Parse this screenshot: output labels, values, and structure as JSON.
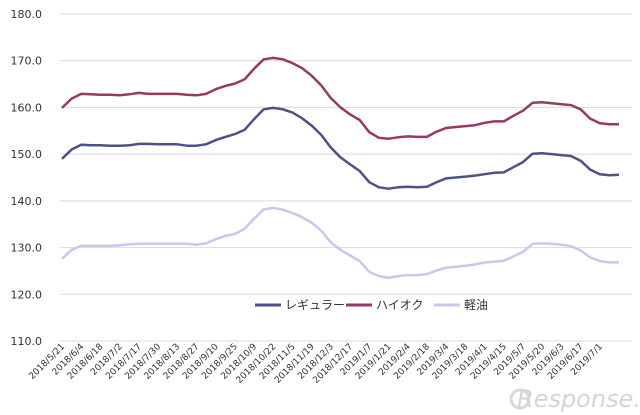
{
  "chart_data": {
    "type": "line",
    "title": "",
    "xlabel": "",
    "ylabel": "",
    "ylim": [
      110,
      180
    ],
    "ytick_step": 10,
    "y_tick_labels": [
      "110.0",
      "120.0",
      "130.0",
      "140.0",
      "150.0",
      "160.0",
      "170.0",
      "180.0"
    ],
    "grid": "horizontal",
    "legend_position": "bottom-center",
    "x_tick_labels": [
      "2018/5/21",
      "2018/6/4",
      "2018/6/18",
      "2018/7/2",
      "2018/7/17",
      "2018/7/30",
      "2018/8/13",
      "2018/8/27",
      "2018/9/10",
      "2018/9/25",
      "2018/10/9",
      "2018/10/22",
      "2018/11/5",
      "2018/11/19",
      "2018/12/3",
      "2018/12/17",
      "2019/1/7",
      "2019/1/21",
      "2019/2/4",
      "2019/2/18",
      "2019/3/4",
      "2019/3/18",
      "2019/4/1",
      "2019/4/15",
      "2019/5/7",
      "2019/5/20",
      "2019/6/3",
      "2019/6/17",
      "2019/7/1"
    ],
    "x_label_every": 2,
    "series": [
      {
        "name": "レギュラー",
        "color": "#4c5286",
        "values": [
          149.0,
          151.0,
          152.0,
          151.9,
          151.9,
          151.8,
          151.8,
          151.9,
          152.2,
          152.2,
          152.1,
          152.1,
          152.1,
          151.8,
          151.8,
          152.1,
          153.0,
          153.7,
          154.3,
          155.2,
          157.5,
          159.6,
          159.9,
          159.6,
          158.9,
          157.7,
          156.1,
          154.1,
          151.4,
          149.3,
          147.8,
          146.4,
          144.0,
          142.9,
          142.6,
          142.9,
          143.0,
          142.9,
          143.0,
          144.0,
          144.8,
          145.0,
          145.2,
          145.4,
          145.7,
          146.0,
          146.1,
          147.2,
          148.3,
          150.1,
          150.2,
          150.0,
          149.8,
          149.6,
          148.6,
          146.7,
          145.7,
          145.5,
          145.6
        ]
      },
      {
        "name": "ハイオク",
        "color": "#943a64",
        "values": [
          159.9,
          161.9,
          162.9,
          162.8,
          162.7,
          162.7,
          162.6,
          162.8,
          163.1,
          162.9,
          162.9,
          162.9,
          162.9,
          162.7,
          162.6,
          162.9,
          163.9,
          164.6,
          165.1,
          166.0,
          168.3,
          170.3,
          170.6,
          170.3,
          169.5,
          168.4,
          166.8,
          164.7,
          162.0,
          160.0,
          158.5,
          157.3,
          154.7,
          153.5,
          153.3,
          153.6,
          153.8,
          153.7,
          153.7,
          154.8,
          155.6,
          155.8,
          156.0,
          156.2,
          156.7,
          157.0,
          157.0,
          158.2,
          159.3,
          161.0,
          161.1,
          160.9,
          160.7,
          160.5,
          159.6,
          157.6,
          156.6,
          156.4,
          156.4
        ]
      },
      {
        "name": "軽油",
        "color": "#c8c8ef",
        "values": [
          127.6,
          129.5,
          130.4,
          130.4,
          130.4,
          130.4,
          130.5,
          130.7,
          130.8,
          130.8,
          130.8,
          130.8,
          130.8,
          130.8,
          130.6,
          130.9,
          131.8,
          132.5,
          132.9,
          134.0,
          136.2,
          138.2,
          138.5,
          138.1,
          137.4,
          136.5,
          135.3,
          133.6,
          131.1,
          129.5,
          128.3,
          127.1,
          124.8,
          123.9,
          123.5,
          123.9,
          124.1,
          124.1,
          124.3,
          125.1,
          125.7,
          125.9,
          126.1,
          126.4,
          126.8,
          127.0,
          127.2,
          128.1,
          129.1,
          130.8,
          130.9,
          130.8,
          130.6,
          130.3,
          129.4,
          127.9,
          127.1,
          126.8,
          126.9
        ]
      }
    ]
  },
  "watermark": "Response."
}
